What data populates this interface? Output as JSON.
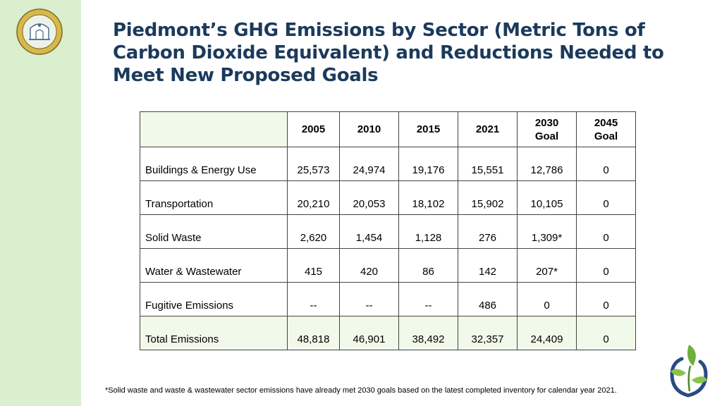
{
  "title": "Piedmont’s GHG Emissions by Sector (Metric Tons of Carbon Dioxide Equivalent) and Reductions Needed to Meet New Proposed Goals",
  "seal_text": "CITY OF PIEDMONT CALIFORNIA",
  "icons": {
    "seal": "city-seal-icon",
    "logo": "leaf-sprout-logo-icon"
  },
  "colors": {
    "sidebar": "#d9efcd",
    "title": "#1b3a5c",
    "total_row": "#f1f9ea"
  },
  "table": {
    "headers": [
      "",
      "2005",
      "2010",
      "2015",
      "2021",
      "2030 Goal",
      "2045 Goal"
    ],
    "header_lines": [
      [
        ""
      ],
      [
        "2005"
      ],
      [
        "2010"
      ],
      [
        "2015"
      ],
      [
        "2021"
      ],
      [
        "2030",
        "Goal"
      ],
      [
        "2045",
        "Goal"
      ]
    ],
    "rows": [
      [
        "Buildings & Energy Use",
        "25,573",
        "24,974",
        "19,176",
        "15,551",
        "12,786",
        "0"
      ],
      [
        "Transportation",
        "20,210",
        "20,053",
        "18,102",
        "15,902",
        "10,105",
        "0"
      ],
      [
        "Solid Waste",
        "2,620",
        "1,454",
        "1,128",
        "276",
        "1,309*",
        "0"
      ],
      [
        "Water & Wastewater",
        "415",
        "420",
        "86",
        "142",
        "207*",
        "0"
      ],
      [
        "Fugitive Emissions",
        "--",
        "--",
        "--",
        "486",
        "0",
        "0"
      ],
      [
        "Total Emissions",
        "48,818",
        "46,901",
        "38,492",
        "32,357",
        "24,409",
        "0"
      ]
    ]
  },
  "footnote": "*Solid waste and waste & wastewater sector emissions have already met 2030 goals based on the latest completed inventory for calendar year 2021."
}
